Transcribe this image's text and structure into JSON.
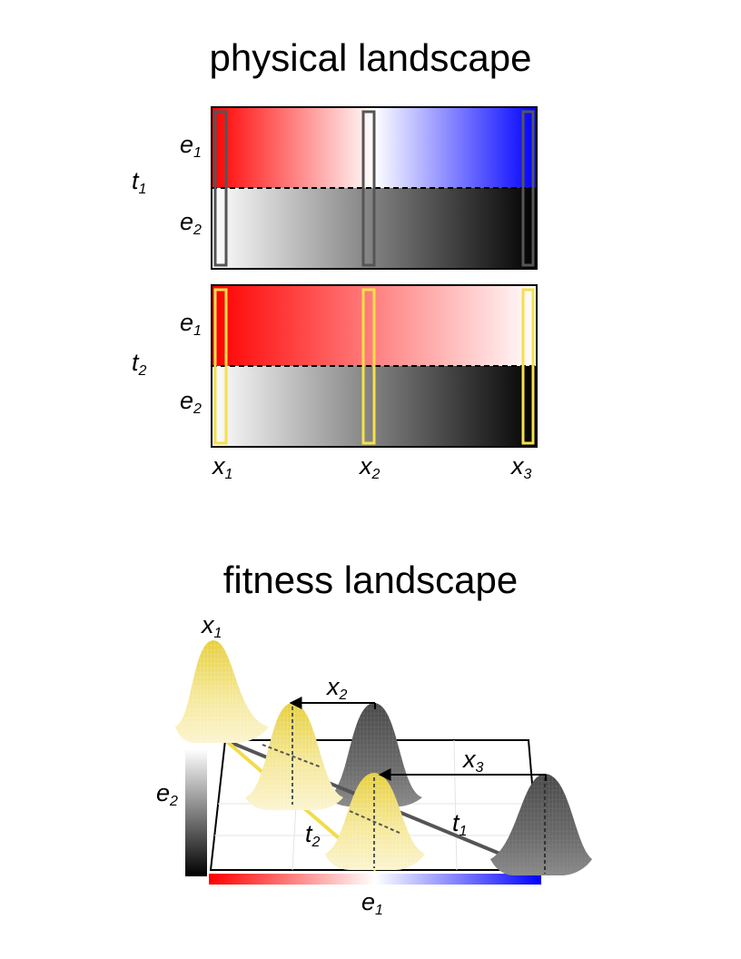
{
  "physical": {
    "title": "physical landscape",
    "time_labels": [
      {
        "base": "t",
        "sub": "1"
      },
      {
        "base": "t",
        "sub": "2"
      }
    ],
    "env_labels": [
      {
        "base": "e",
        "sub": "1"
      },
      {
        "base": "e",
        "sub": "2"
      }
    ],
    "location_labels": [
      {
        "base": "x",
        "sub": "1"
      },
      {
        "base": "x",
        "sub": "2"
      },
      {
        "base": "x",
        "sub": "3"
      }
    ],
    "colors": {
      "e1_low": "#ff0000",
      "e1_mid": "#ffffff",
      "e1_high": "#0000ff",
      "e2_low": "#ffffff",
      "e2_high": "#000000",
      "t1_window": "#555555",
      "t2_window": "#f5e04a"
    }
  },
  "fitness": {
    "title": "fitness landscape",
    "peak_label": {
      "base": "x",
      "sub": "1"
    },
    "arrow_labels": [
      {
        "base": "x",
        "sub": "2"
      },
      {
        "base": "x",
        "sub": "3"
      }
    ],
    "trajectory_labels": [
      {
        "base": "t",
        "sub": "1"
      },
      {
        "base": "t",
        "sub": "2"
      }
    ],
    "axis_labels": {
      "e2": {
        "base": "e",
        "sub": "2"
      },
      "e1": {
        "base": "e",
        "sub": "1"
      }
    },
    "colors": {
      "yellow_peak": "#f3e27a",
      "gray_peak": "#6a6a6a",
      "t1_line": "#555555",
      "t2_line": "#f2dc4a"
    }
  }
}
